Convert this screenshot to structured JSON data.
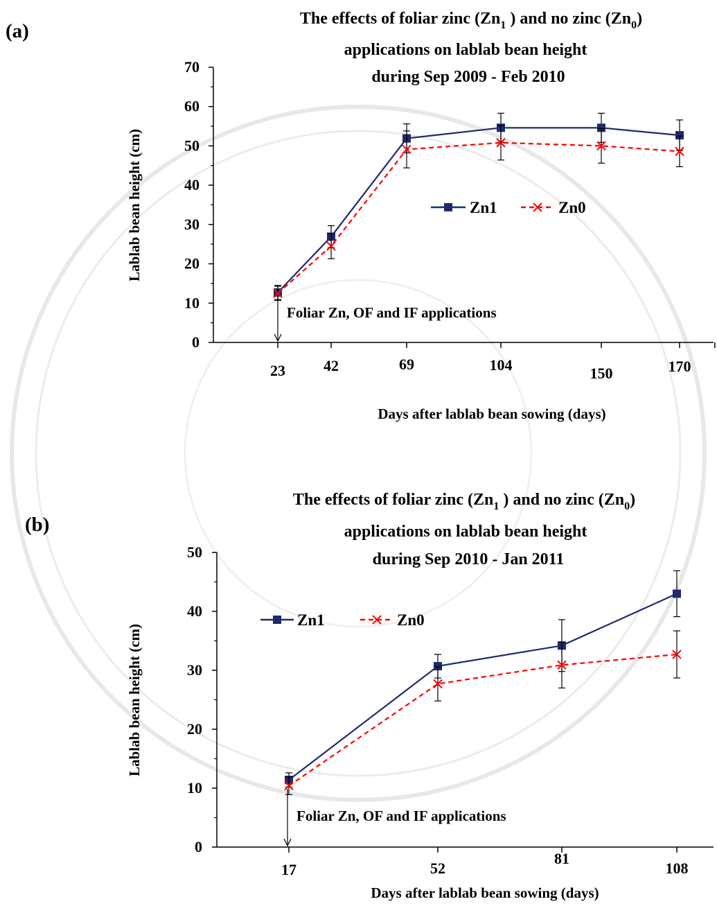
{
  "colors": {
    "zn1": "#1f2a6b",
    "zn0": "#ff0000",
    "axis": "#000000",
    "watermark": "#d9d9d9"
  },
  "chart_data": [
    {
      "type": "line",
      "panel_label": "(a)",
      "title_lines": [
        [
          "The effects of foliar zinc (Zn",
          "1",
          " ) and no zinc (Zn",
          "0",
          ")"
        ],
        [
          "applications on lablab bean height"
        ],
        [
          "during Sep 2009 - Feb 2010"
        ]
      ],
      "xlabel": "Days after  lablab bean sowing (days)",
      "ylabel": "Lablab bean height (cm)",
      "ylim": [
        0,
        70
      ],
      "yticks": [
        0,
        10,
        20,
        30,
        40,
        50,
        60,
        70
      ],
      "categories": [
        "23",
        "42",
        "69",
        "104",
        "150",
        "170"
      ],
      "series": [
        {
          "name": "Zn1",
          "values": [
            12.7,
            26.9,
            51.9,
            54.6,
            54.6,
            52.7
          ],
          "errors": [
            1.8,
            2.8,
            3.7,
            3.7,
            3.7,
            3.9
          ]
        },
        {
          "name": "Zn0",
          "values": [
            12.5,
            24.5,
            49.1,
            50.8,
            50.0,
            48.6
          ],
          "errors": [
            1.8,
            3.2,
            4.7,
            4.4,
            4.4,
            3.9
          ]
        }
      ],
      "annotation": "Foliar Zn, OF and IF applications",
      "legend": "center-right"
    },
    {
      "type": "line",
      "panel_label": "(b)",
      "title_lines": [
        [
          "The effects of foliar zinc (Zn",
          "1",
          " ) and no zinc (Zn",
          "0",
          ")"
        ],
        [
          "applications on lablab bean height"
        ],
        [
          "during Sep 2010 - Jan 2011"
        ]
      ],
      "xlabel": "Days after  lablab bean sowing (days)",
      "ylabel": "Lablab bean height (cm)",
      "ylim": [
        0,
        50
      ],
      "yticks": [
        0,
        10,
        20,
        30,
        40,
        50
      ],
      "categories": [
        "17",
        "52",
        "81",
        "108"
      ],
      "series": [
        {
          "name": "Zn1",
          "values": [
            11.4,
            30.7,
            34.2,
            43.0
          ],
          "errors": [
            1.2,
            2.0,
            4.4,
            3.9
          ]
        },
        {
          "name": "Zn0",
          "values": [
            10.4,
            27.7,
            30.9,
            32.7
          ],
          "errors": [
            1.5,
            2.9,
            3.9,
            4.0
          ]
        }
      ],
      "annotation": "Foliar Zn, OF and IF applications",
      "legend": "top-left"
    }
  ]
}
